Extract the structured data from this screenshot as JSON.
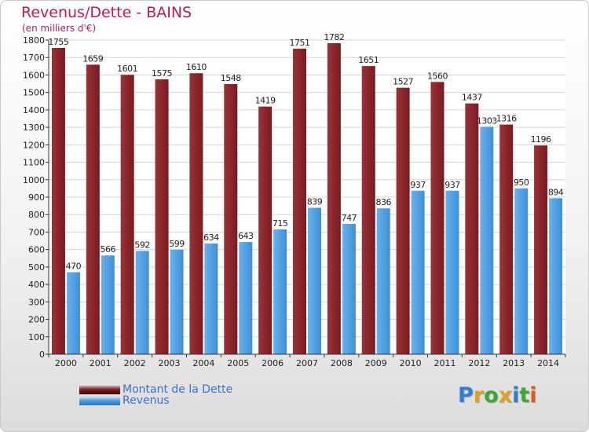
{
  "header": {
    "title": "Revenus/Dette - BAINS",
    "subtitle": "(en milliers d'€)"
  },
  "colors": {
    "debt": "#7a1a1f",
    "debt_light": "#9a3338",
    "revenue": "#3f8fd6",
    "revenue_light": "#67b2ef",
    "title": "#c0185a",
    "legend_text": "#3b6fd8"
  },
  "chart_data": {
    "type": "bar",
    "title": "Revenus/Dette - BAINS",
    "ylabel": "(en milliers d'€)",
    "xlabel": "",
    "ylim": [
      0,
      1800
    ],
    "ytick_step": 100,
    "grid": true,
    "legend_position": "bottom-left",
    "categories": [
      "2000",
      "2001",
      "2002",
      "2003",
      "2004",
      "2005",
      "2006",
      "2007",
      "2008",
      "2009",
      "2010",
      "2011",
      "2012",
      "2013",
      "2014"
    ],
    "series": [
      {
        "name": "Montant de la Dette",
        "values": [
          1755,
          1659,
          1601,
          1575,
          1610,
          1548,
          1419,
          1751,
          1782,
          1651,
          1527,
          1560,
          1437,
          1316,
          1196
        ]
      },
      {
        "name": "Revenus",
        "values": [
          470,
          566,
          592,
          599,
          634,
          643,
          715,
          839,
          747,
          836,
          937,
          937,
          1303,
          950,
          894
        ]
      }
    ]
  },
  "legend": {
    "items": [
      {
        "label": "Montant de la Dette"
      },
      {
        "label": "Revenus"
      }
    ]
  },
  "logo": {
    "text": "Proxiti"
  }
}
